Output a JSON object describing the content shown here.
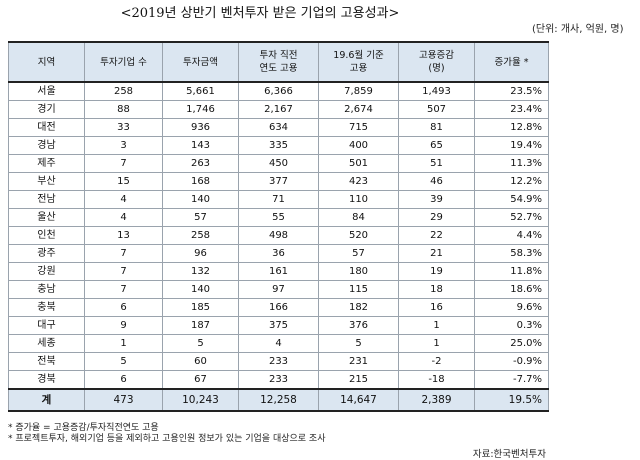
{
  "title": "<2019년 상반기 벤처투자 받은 기업의 고용성과>",
  "unit": "(단위: 개사, 억원, 명)",
  "headers": [
    "지역",
    "투자기업 수",
    "투자금액",
    "투자 직전\n연도 고용",
    "19.6월 기준\n고용",
    "고용증감\n(명)",
    "증가율 *"
  ],
  "rows": [
    [
      "서울",
      "258",
      "5,661",
      "6,366",
      "7,859",
      "1,493",
      "23.5%"
    ],
    [
      "경기",
      "88",
      "1,746",
      "2,167",
      "2,674",
      "507",
      "23.4%"
    ],
    [
      "대전",
      "33",
      "936",
      "634",
      "715",
      "81",
      "12.8%"
    ],
    [
      "경남",
      "3",
      "143",
      "335",
      "400",
      "65",
      "19.4%"
    ],
    [
      "제주",
      "7",
      "263",
      "450",
      "501",
      "51",
      "11.3%"
    ],
    [
      "부산",
      "15",
      "168",
      "377",
      "423",
      "46",
      "12.2%"
    ],
    [
      "전남",
      "4",
      "140",
      "71",
      "110",
      "39",
      "54.9%"
    ],
    [
      "울산",
      "4",
      "57",
      "55",
      "84",
      "29",
      "52.7%"
    ],
    [
      "인천",
      "13",
      "258",
      "498",
      "520",
      "22",
      "4.4%"
    ],
    [
      "광주",
      "7",
      "96",
      "36",
      "57",
      "21",
      "58.3%"
    ],
    [
      "강원",
      "7",
      "132",
      "161",
      "180",
      "19",
      "11.8%"
    ],
    [
      "충남",
      "7",
      "140",
      "97",
      "115",
      "18",
      "18.6%"
    ],
    [
      "충북",
      "6",
      "185",
      "166",
      "182",
      "16",
      "9.6%"
    ],
    [
      "대구",
      "9",
      "187",
      "375",
      "376",
      "1",
      "0.3%"
    ],
    [
      "세종",
      "1",
      "5",
      "4",
      "5",
      "1",
      "25.0%"
    ],
    [
      "전북",
      "5",
      "60",
      "233",
      "231",
      "-2",
      "-0.9%"
    ],
    [
      "경북",
      "6",
      "67",
      "233",
      "215",
      "-18",
      "-7.7%"
    ]
  ],
  "total": [
    "계",
    "473",
    "10,243",
    "12,258",
    "14,647",
    "2,389",
    "19.5%"
  ],
  "notes": [
    "* 증가율 = 고용증감/투자직전연도 고용",
    "* 프로젝트투자, 해외기업 등을 제외하고 고용인원 정보가 있는 기업을 대상으로 조사"
  ],
  "source": "자료:한국벤처투자"
}
